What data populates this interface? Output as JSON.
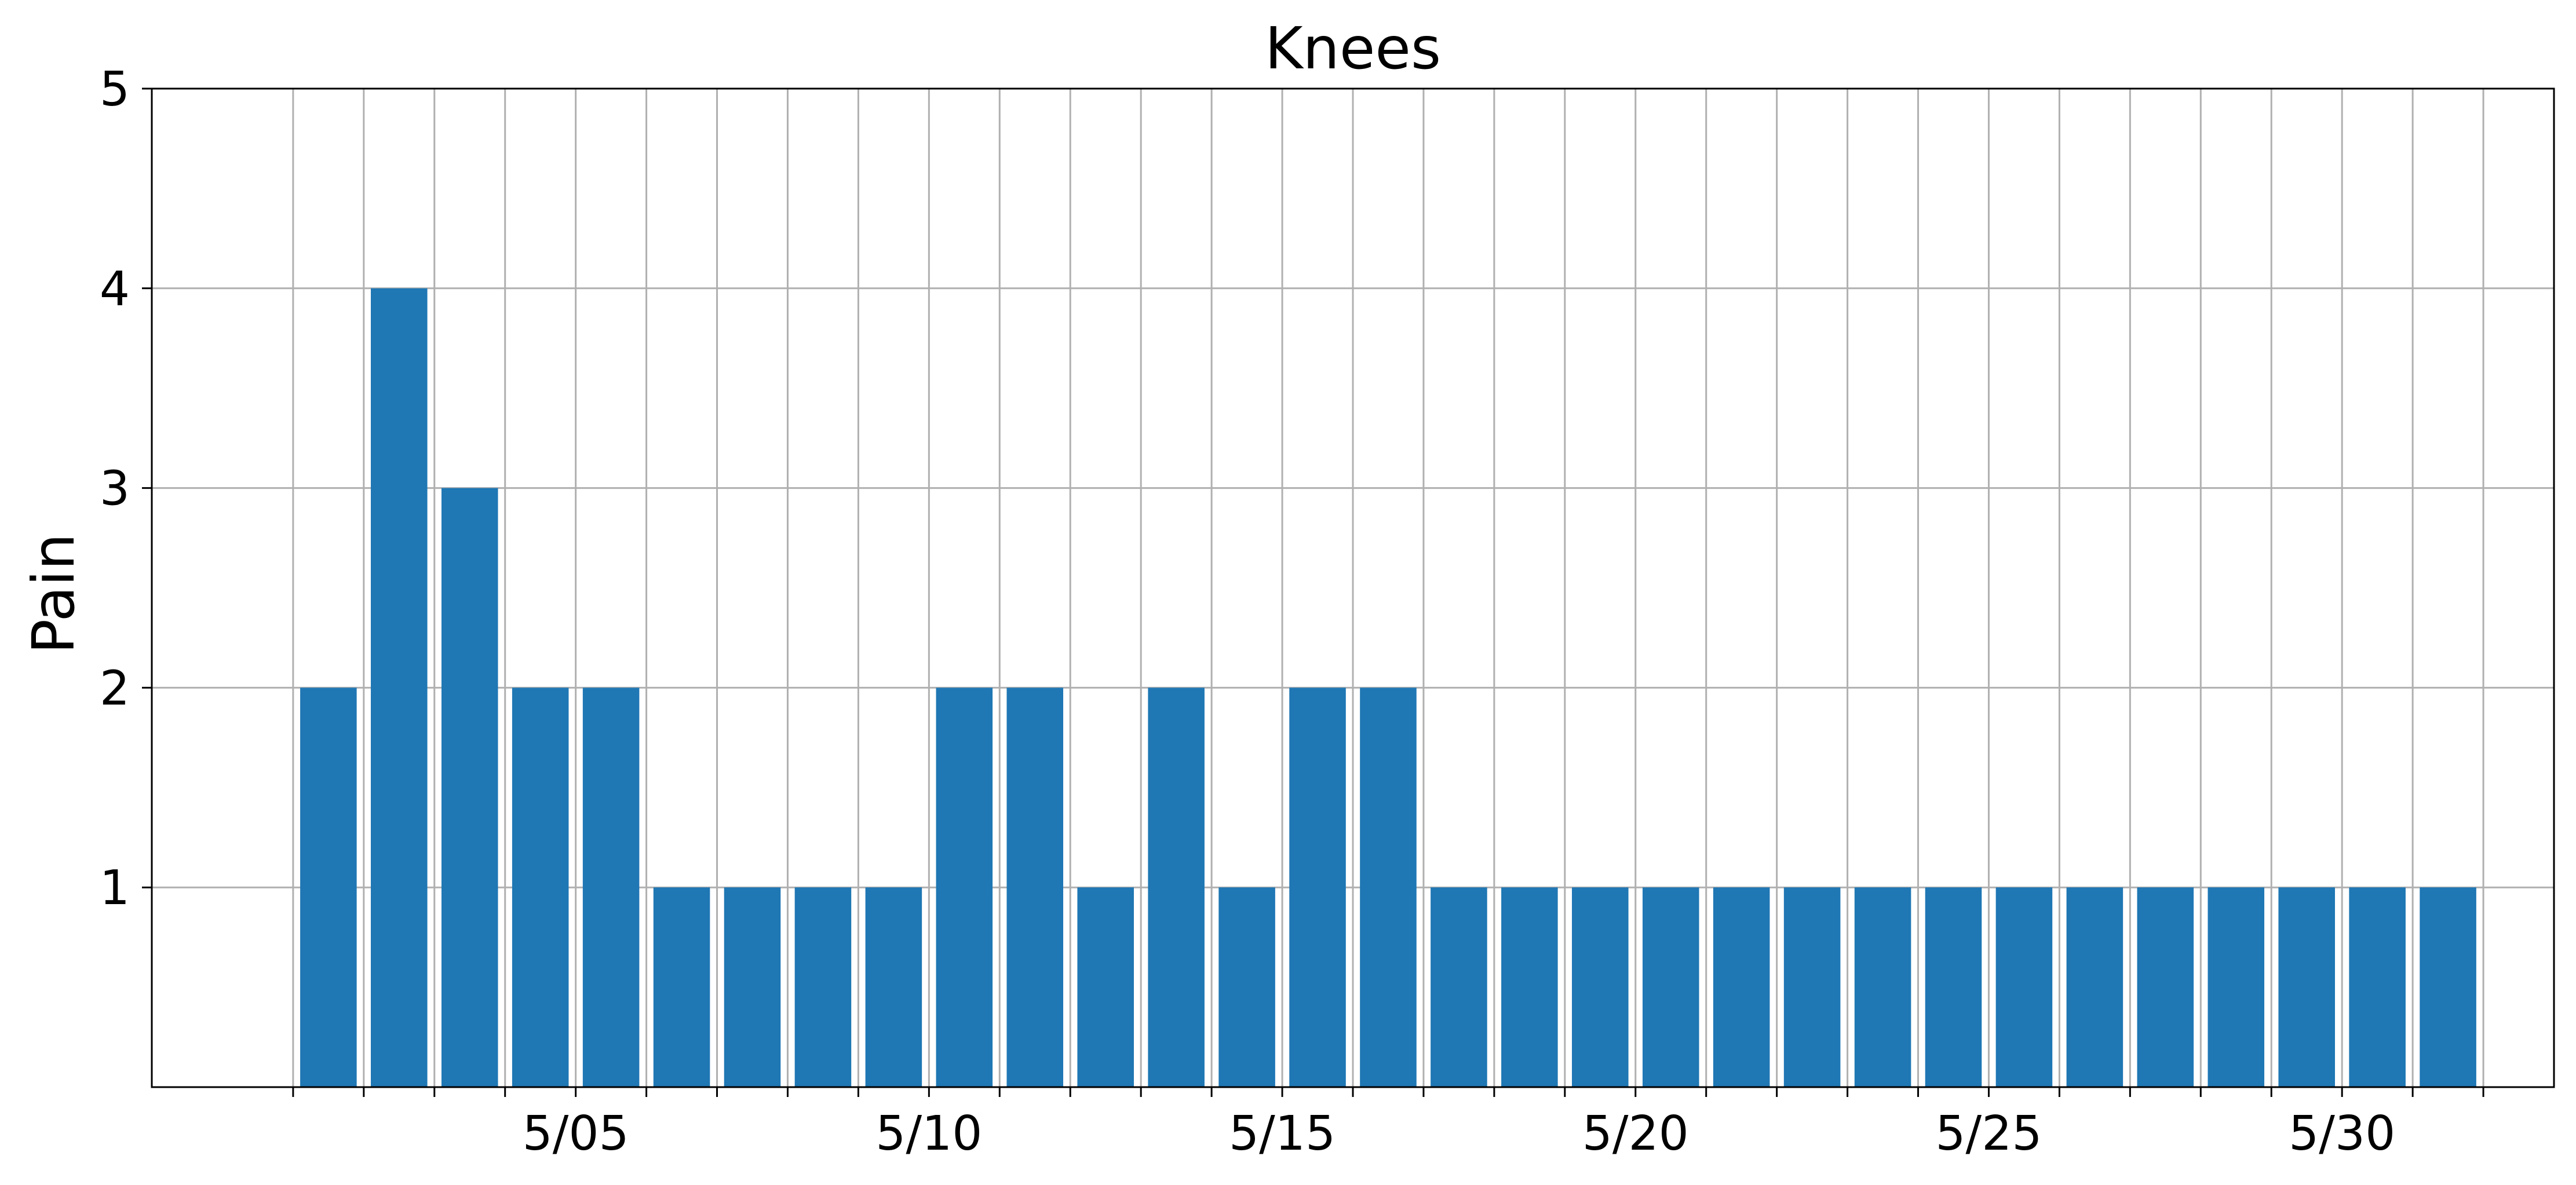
{
  "chart_data": {
    "type": "bar",
    "title": "Knees",
    "xlabel": "",
    "ylabel": "Pain",
    "x": [
      "5/01",
      "5/02",
      "5/03",
      "5/04",
      "5/05",
      "5/06",
      "5/07",
      "5/08",
      "5/09",
      "5/10",
      "5/11",
      "5/12",
      "5/13",
      "5/14",
      "5/15",
      "5/16",
      "5/17",
      "5/18",
      "5/19",
      "5/20",
      "5/21",
      "5/22",
      "5/23",
      "5/24",
      "5/25",
      "5/26",
      "5/27",
      "5/28",
      "5/29",
      "5/30",
      "5/31"
    ],
    "values": [
      2,
      4,
      3,
      2,
      2,
      1,
      1,
      1,
      1,
      2,
      2,
      1,
      2,
      1,
      2,
      2,
      1,
      1,
      1,
      1,
      1,
      1,
      1,
      1,
      1,
      1,
      1,
      1,
      1,
      1,
      1
    ],
    "x_range": [
      "4/29.5",
      "6/01.5"
    ],
    "x_tick_labels": [
      "5/05",
      "5/10",
      "5/15",
      "5/20",
      "5/25",
      "5/30"
    ],
    "ylim": [
      0,
      5
    ],
    "y_tick_labels": [
      "1",
      "2",
      "3",
      "4",
      "5"
    ],
    "grid": true,
    "bar_color": "#1f77b4",
    "grid_color": "#b0b0b0"
  }
}
